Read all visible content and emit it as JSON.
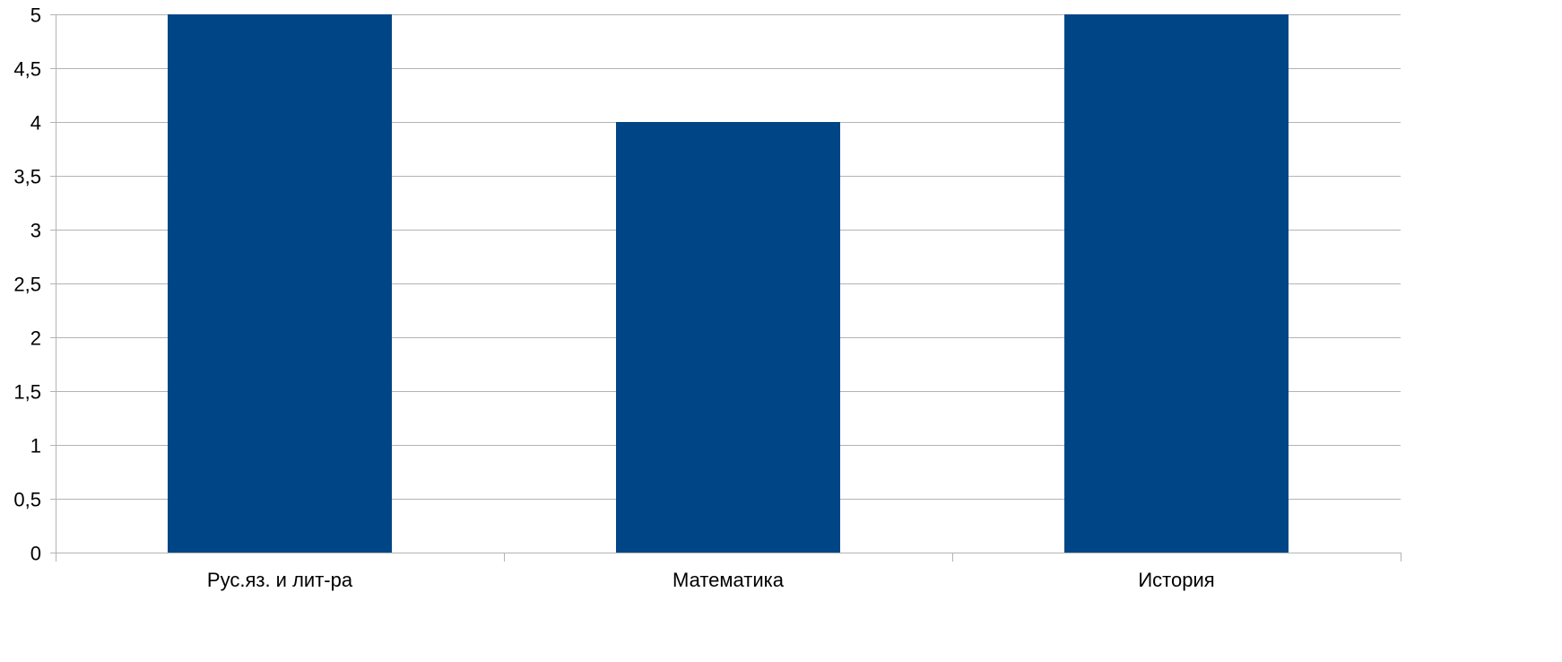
{
  "chart_data": {
    "type": "bar",
    "title": "",
    "xlabel": "",
    "ylabel": "",
    "categories": [
      "Рус.яз. и лит-ра",
      "Математика",
      "История"
    ],
    "values": [
      5,
      4,
      5
    ],
    "ylim": [
      0,
      5
    ],
    "yticks": [
      0,
      0.5,
      1,
      1.5,
      2,
      2.5,
      3,
      3.5,
      4,
      4.5,
      5
    ],
    "ytick_labels": [
      "0",
      "0,5",
      "1",
      "1,5",
      "2",
      "2,5",
      "3",
      "3,5",
      "4",
      "4,5",
      "5"
    ],
    "grid": true,
    "legend": "none",
    "colors": {
      "bar": "#004586",
      "grid": "#b3b3b3",
      "axis": "#b3b3b3",
      "text": "#000000"
    }
  }
}
